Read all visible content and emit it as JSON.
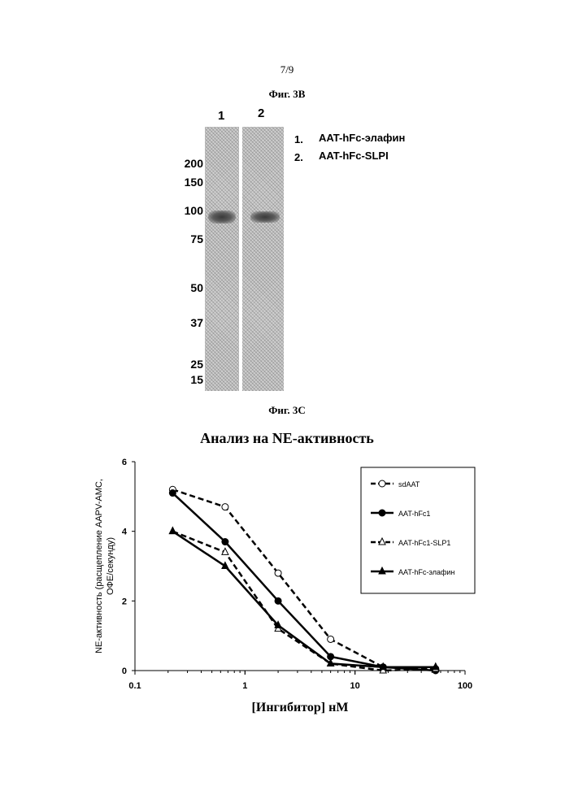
{
  "page_number": "7/9",
  "figure_3b": {
    "title": "Фиг. 3В",
    "lanes": [
      "1",
      "2"
    ],
    "mw_markers": [
      "200",
      "150",
      "100",
      "75",
      "50",
      "37",
      "25",
      "15"
    ],
    "legend": [
      {
        "num": "1.",
        "label": "AAT-hFc-элафин"
      },
      {
        "num": "2.",
        "label": "AAT-hFc-SLPI"
      }
    ]
  },
  "figure_3c": {
    "title": "Фиг. 3С",
    "chart_title": "Анализ на NE-активность"
  },
  "chart_data": {
    "type": "line",
    "title": "Анализ на NE-активность",
    "xlabel": "[Ингибитор] нМ",
    "ylabel": "NE-активность (расщепление AAPV-AMC, ОФЕ/секунду)",
    "xscale": "log",
    "xlim": [
      0.1,
      100
    ],
    "ylim": [
      0,
      6
    ],
    "xticks": [
      "0.1",
      "1",
      "10",
      "100"
    ],
    "yticks": [
      "0",
      "2",
      "4",
      "6"
    ],
    "grid": false,
    "legend_position": "top-right",
    "series": [
      {
        "name": "sdAAT",
        "marker": "open-circle",
        "dash": true,
        "x": [
          0.22,
          0.66,
          2,
          6,
          18,
          54
        ],
        "y": [
          5.2,
          4.7,
          2.8,
          0.9,
          0.1,
          0.05
        ]
      },
      {
        "name": "AAT-hFc1",
        "marker": "filled-circle",
        "dash": false,
        "x": [
          0.22,
          0.66,
          2,
          6,
          18,
          54
        ],
        "y": [
          5.1,
          3.7,
          2.0,
          0.4,
          0.1,
          0.0
        ]
      },
      {
        "name": "AAT-hFc1-SLP1",
        "marker": "open-triangle",
        "dash": true,
        "x": [
          0.22,
          0.66,
          2,
          6,
          18,
          54
        ],
        "y": [
          4.0,
          3.4,
          1.2,
          0.2,
          0.0,
          0.05
        ]
      },
      {
        "name": "AAT-hFc-элафин",
        "marker": "filled-triangle",
        "dash": false,
        "x": [
          0.22,
          0.66,
          2,
          6,
          18,
          54
        ],
        "y": [
          4.0,
          3.0,
          1.3,
          0.2,
          0.1,
          0.1
        ]
      }
    ]
  }
}
